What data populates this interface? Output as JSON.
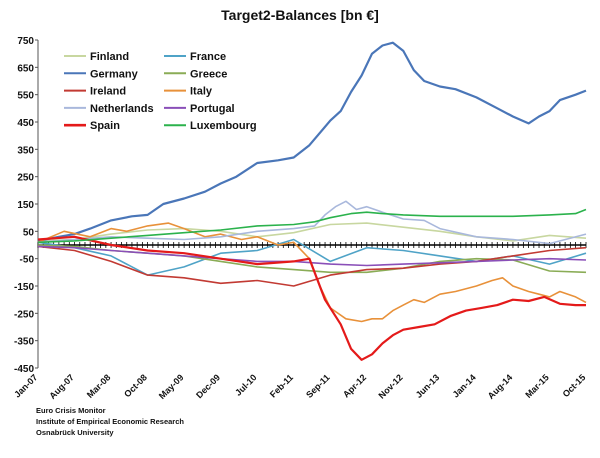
{
  "chart_data": {
    "type": "line",
    "title": "Target2-Balances [bn €]",
    "xlabel": "",
    "ylabel": "",
    "ylim": [
      -450,
      750
    ],
    "yticks": [
      750,
      650,
      550,
      450,
      350,
      250,
      150,
      50,
      -50,
      -150,
      -250,
      -350,
      -450
    ],
    "x_start": "Jan-07",
    "x_end": "Oct-15",
    "n_months": 106,
    "x_tick_labels": [
      "Jan-07",
      "Aug-07",
      "Mar-08",
      "Oct-08",
      "May-09",
      "Dec-09",
      "Jul-10",
      "Feb-11",
      "Sep-11",
      "Apr-12",
      "Nov-12",
      "Jun-13",
      "Jan-14",
      "Aug-14",
      "Mar-15",
      "Oct-15"
    ],
    "legend_position": "top-left",
    "grid": false,
    "series": [
      {
        "name": "Finland",
        "color": "#c8d7a0",
        "points": [
          [
            0,
            15
          ],
          [
            7,
            20
          ],
          [
            14,
            40
          ],
          [
            21,
            55
          ],
          [
            28,
            60
          ],
          [
            35,
            50
          ],
          [
            42,
            30
          ],
          [
            49,
            45
          ],
          [
            56,
            75
          ],
          [
            63,
            80
          ],
          [
            70,
            65
          ],
          [
            77,
            50
          ],
          [
            84,
            30
          ],
          [
            91,
            15
          ],
          [
            98,
            35
          ],
          [
            105,
            25
          ]
        ]
      },
      {
        "name": "France",
        "color": "#4fa3c7",
        "points": [
          [
            0,
            10
          ],
          [
            7,
            -10
          ],
          [
            14,
            -40
          ],
          [
            21,
            -110
          ],
          [
            28,
            -80
          ],
          [
            35,
            -30
          ],
          [
            42,
            -20
          ],
          [
            49,
            20
          ],
          [
            56,
            -60
          ],
          [
            63,
            -10
          ],
          [
            70,
            -20
          ],
          [
            77,
            -40
          ],
          [
            84,
            -60
          ],
          [
            91,
            -40
          ],
          [
            98,
            -70
          ],
          [
            105,
            -30
          ]
        ]
      },
      {
        "name": "Germany",
        "color": "#4a76b8",
        "points": [
          [
            0,
            15
          ],
          [
            4,
            30
          ],
          [
            7,
            40
          ],
          [
            10,
            60
          ],
          [
            14,
            90
          ],
          [
            18,
            105
          ],
          [
            21,
            110
          ],
          [
            24,
            150
          ],
          [
            28,
            170
          ],
          [
            32,
            195
          ],
          [
            35,
            225
          ],
          [
            38,
            250
          ],
          [
            42,
            300
          ],
          [
            46,
            310
          ],
          [
            49,
            320
          ],
          [
            52,
            365
          ],
          [
            56,
            455
          ],
          [
            58,
            490
          ],
          [
            60,
            560
          ],
          [
            62,
            620
          ],
          [
            64,
            700
          ],
          [
            66,
            730
          ],
          [
            68,
            740
          ],
          [
            70,
            710
          ],
          [
            72,
            640
          ],
          [
            74,
            600
          ],
          [
            77,
            580
          ],
          [
            80,
            570
          ],
          [
            84,
            540
          ],
          [
            88,
            500
          ],
          [
            91,
            470
          ],
          [
            94,
            445
          ],
          [
            96,
            470
          ],
          [
            98,
            490
          ],
          [
            100,
            530
          ],
          [
            103,
            550
          ],
          [
            105,
            565
          ]
        ]
      },
      {
        "name": "Greece",
        "color": "#8aac56",
        "points": [
          [
            0,
            0
          ],
          [
            7,
            -5
          ],
          [
            14,
            -20
          ],
          [
            21,
            -30
          ],
          [
            28,
            -40
          ],
          [
            35,
            -60
          ],
          [
            42,
            -80
          ],
          [
            49,
            -90
          ],
          [
            56,
            -100
          ],
          [
            63,
            -100
          ],
          [
            70,
            -85
          ],
          [
            77,
            -60
          ],
          [
            84,
            -50
          ],
          [
            91,
            -55
          ],
          [
            98,
            -95
          ],
          [
            105,
            -100
          ]
        ]
      },
      {
        "name": "Ireland",
        "color": "#c23a33",
        "points": [
          [
            0,
            -5
          ],
          [
            7,
            -20
          ],
          [
            14,
            -60
          ],
          [
            21,
            -110
          ],
          [
            28,
            -120
          ],
          [
            35,
            -140
          ],
          [
            42,
            -130
          ],
          [
            49,
            -150
          ],
          [
            56,
            -110
          ],
          [
            63,
            -90
          ],
          [
            70,
            -85
          ],
          [
            77,
            -70
          ],
          [
            84,
            -60
          ],
          [
            91,
            -40
          ],
          [
            98,
            -20
          ],
          [
            105,
            -10
          ]
        ]
      },
      {
        "name": "Italy",
        "color": "#e8913a",
        "points": [
          [
            0,
            10
          ],
          [
            5,
            50
          ],
          [
            10,
            30
          ],
          [
            14,
            60
          ],
          [
            17,
            50
          ],
          [
            21,
            70
          ],
          [
            25,
            80
          ],
          [
            28,
            60
          ],
          [
            32,
            30
          ],
          [
            35,
            40
          ],
          [
            39,
            20
          ],
          [
            42,
            30
          ],
          [
            46,
            0
          ],
          [
            49,
            10
          ],
          [
            52,
            -50
          ],
          [
            54,
            -150
          ],
          [
            56,
            -230
          ],
          [
            59,
            -270
          ],
          [
            62,
            -280
          ],
          [
            64,
            -270
          ],
          [
            66,
            -270
          ],
          [
            68,
            -240
          ],
          [
            70,
            -220
          ],
          [
            72,
            -200
          ],
          [
            74,
            -210
          ],
          [
            77,
            -180
          ],
          [
            80,
            -170
          ],
          [
            84,
            -150
          ],
          [
            87,
            -130
          ],
          [
            89,
            -120
          ],
          [
            91,
            -150
          ],
          [
            94,
            -170
          ],
          [
            96,
            -180
          ],
          [
            98,
            -190
          ],
          [
            100,
            -170
          ],
          [
            103,
            -190
          ],
          [
            105,
            -210
          ]
        ]
      },
      {
        "name": "Netherlands",
        "color": "#a9b8dc",
        "points": [
          [
            0,
            10
          ],
          [
            7,
            20
          ],
          [
            14,
            30
          ],
          [
            21,
            25
          ],
          [
            28,
            20
          ],
          [
            35,
            30
          ],
          [
            42,
            50
          ],
          [
            49,
            60
          ],
          [
            53,
            70
          ],
          [
            55,
            110
          ],
          [
            57,
            140
          ],
          [
            59,
            160
          ],
          [
            61,
            130
          ],
          [
            63,
            140
          ],
          [
            66,
            120
          ],
          [
            70,
            95
          ],
          [
            74,
            90
          ],
          [
            77,
            60
          ],
          [
            84,
            30
          ],
          [
            91,
            20
          ],
          [
            98,
            5
          ],
          [
            105,
            40
          ]
        ]
      },
      {
        "name": "Portugal",
        "color": "#8a4fb8",
        "points": [
          [
            0,
            -5
          ],
          [
            7,
            -10
          ],
          [
            14,
            -20
          ],
          [
            21,
            -30
          ],
          [
            28,
            -40
          ],
          [
            35,
            -50
          ],
          [
            42,
            -60
          ],
          [
            49,
            -60
          ],
          [
            56,
            -70
          ],
          [
            63,
            -75
          ],
          [
            70,
            -70
          ],
          [
            77,
            -65
          ],
          [
            84,
            -60
          ],
          [
            91,
            -55
          ],
          [
            98,
            -50
          ],
          [
            105,
            -55
          ]
        ]
      },
      {
        "name": "Spain",
        "color": "#e41a1a",
        "points": [
          [
            0,
            20
          ],
          [
            7,
            30
          ],
          [
            14,
            0
          ],
          [
            21,
            -20
          ],
          [
            28,
            -30
          ],
          [
            35,
            -50
          ],
          [
            42,
            -70
          ],
          [
            49,
            -60
          ],
          [
            52,
            -50
          ],
          [
            55,
            -200
          ],
          [
            58,
            -290
          ],
          [
            60,
            -380
          ],
          [
            62,
            -420
          ],
          [
            64,
            -400
          ],
          [
            66,
            -360
          ],
          [
            68,
            -330
          ],
          [
            70,
            -310
          ],
          [
            73,
            -300
          ],
          [
            76,
            -290
          ],
          [
            79,
            -260
          ],
          [
            82,
            -240
          ],
          [
            85,
            -230
          ],
          [
            88,
            -220
          ],
          [
            91,
            -200
          ],
          [
            94,
            -205
          ],
          [
            97,
            -190
          ],
          [
            100,
            -215
          ],
          [
            103,
            -220
          ],
          [
            105,
            -220
          ]
        ]
      },
      {
        "name": "Luxembourg",
        "color": "#2bb24c",
        "points": [
          [
            0,
            10
          ],
          [
            7,
            15
          ],
          [
            14,
            25
          ],
          [
            21,
            35
          ],
          [
            28,
            45
          ],
          [
            35,
            55
          ],
          [
            42,
            70
          ],
          [
            49,
            75
          ],
          [
            53,
            85
          ],
          [
            56,
            100
          ],
          [
            60,
            115
          ],
          [
            63,
            120
          ],
          [
            66,
            115
          ],
          [
            70,
            110
          ],
          [
            77,
            105
          ],
          [
            84,
            105
          ],
          [
            91,
            105
          ],
          [
            98,
            110
          ],
          [
            103,
            115
          ],
          [
            105,
            130
          ]
        ]
      }
    ]
  },
  "footer": {
    "line1": "Euro Crisis Monitor",
    "line2": "Institute of Empirical Economic Research",
    "line3": "Osnabrück University"
  }
}
